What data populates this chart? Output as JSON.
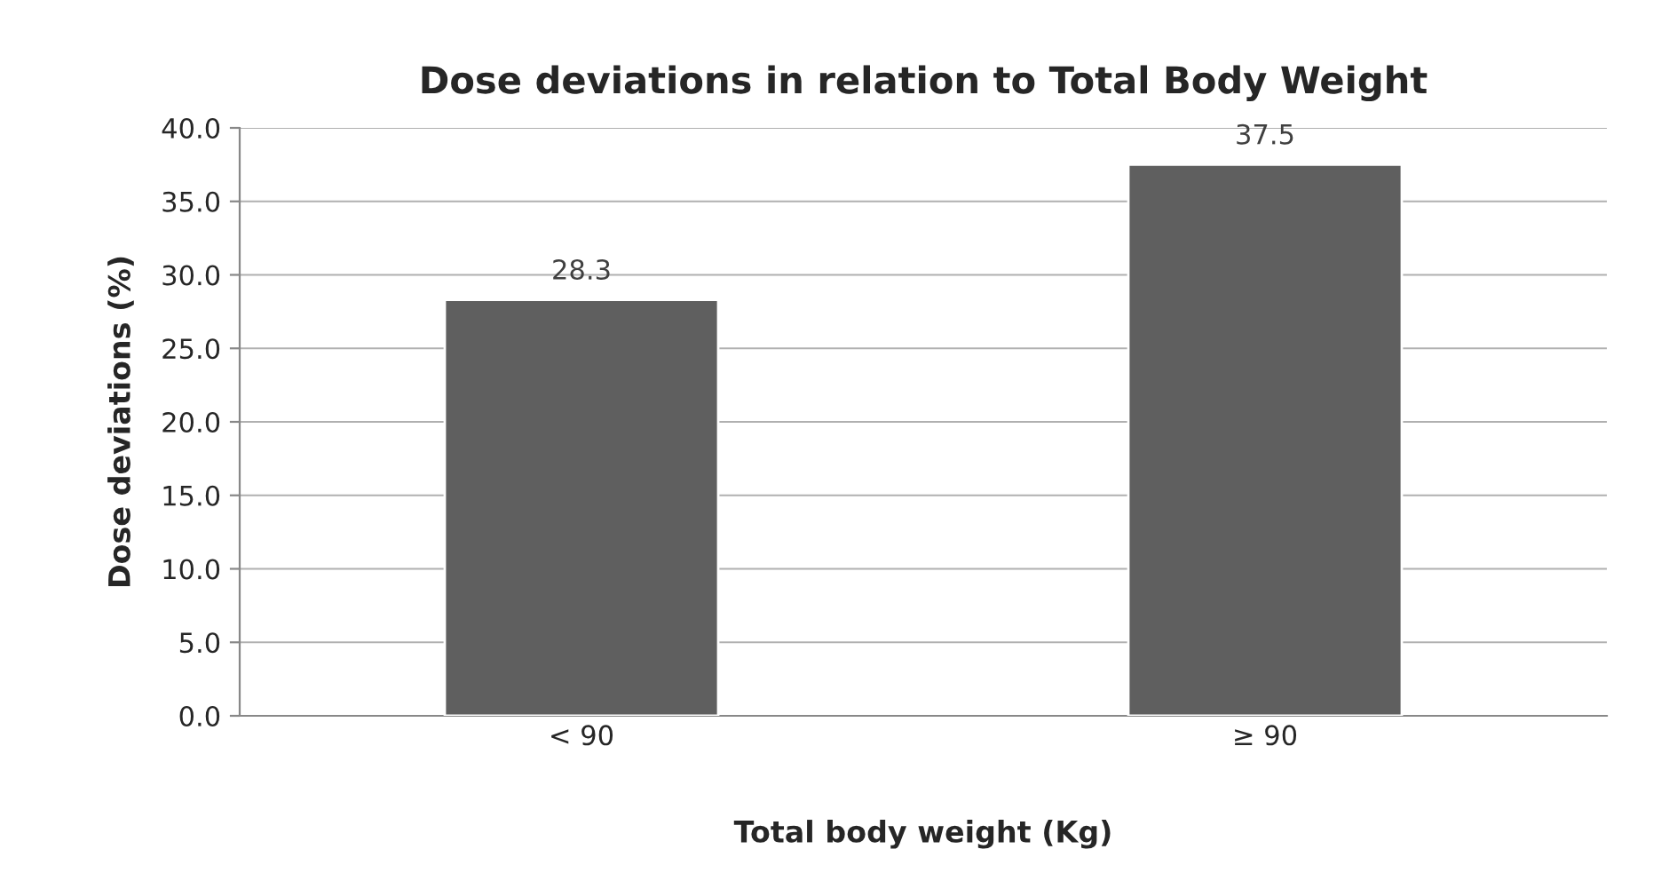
{
  "chart_data": {
    "type": "bar",
    "title": "Dose deviations in relation to Total Body Weight",
    "xlabel": "Total body weight (Kg)",
    "ylabel": "Dose deviations (%)",
    "categories": [
      "< 90",
      "≥ 90"
    ],
    "values": [
      28.3,
      37.5
    ],
    "color": "#5f5f5f",
    "ylim": [
      0,
      40
    ],
    "yticks": [
      {
        "value": 0,
        "label": "0.0"
      },
      {
        "value": 5,
        "label": "5.0"
      },
      {
        "value": 10,
        "label": "10.0"
      },
      {
        "value": 15,
        "label": "15.0"
      },
      {
        "value": 20,
        "label": "20.0"
      },
      {
        "value": 25,
        "label": "25.0"
      },
      {
        "value": 30,
        "label": "30.0"
      },
      {
        "value": 35,
        "label": "35.0"
      },
      {
        "value": 40,
        "label": "40.0"
      }
    ],
    "grid": "y",
    "data_labels": true
  }
}
